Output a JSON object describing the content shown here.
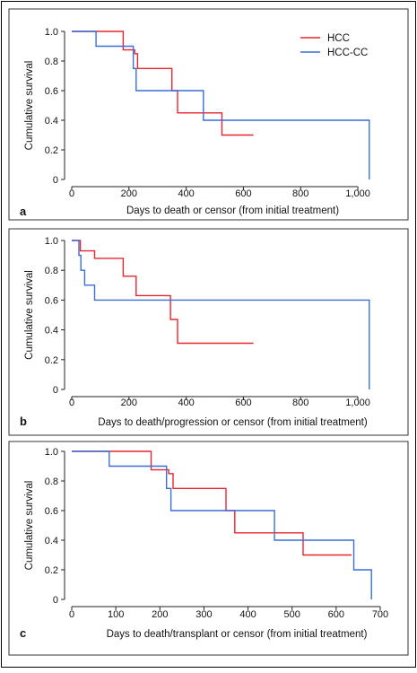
{
  "chart_data": [
    {
      "type": "line",
      "step": true,
      "panel_label": "a",
      "xlabel": "Days to death or censor (from initial treatment)",
      "ylabel": "Cumulative survival",
      "xlim": [
        0,
        1050
      ],
      "ylim": [
        0,
        1.0
      ],
      "x_ticks": [
        0,
        200,
        400,
        600,
        800,
        1000
      ],
      "x_tick_labels": [
        "0",
        "200",
        "400",
        "600",
        "800",
        "1,000"
      ],
      "y_ticks": [
        0,
        0.2,
        0.4,
        0.6,
        0.8,
        1.0
      ],
      "y_tick_labels": [
        "0",
        "0.2",
        "0.4",
        "0.6",
        "0.8",
        "1.0"
      ],
      "legend": {
        "position": "top-right",
        "entries": [
          "HCC",
          "HCC-CC"
        ]
      },
      "series": [
        {
          "name": "HCC",
          "color": "#e8262f",
          "x": [
            0,
            180,
            180,
            220,
            220,
            230,
            230,
            350,
            350,
            370,
            370,
            525,
            525,
            635
          ],
          "y": [
            1.0,
            1.0,
            0.875,
            0.875,
            0.85,
            0.85,
            0.75,
            0.75,
            0.6,
            0.6,
            0.45,
            0.45,
            0.3,
            0.3
          ]
        },
        {
          "name": "HCC-CC",
          "color": "#3a6fd8",
          "x": [
            0,
            85,
            85,
            215,
            215,
            225,
            225,
            460,
            460,
            1040,
            1040
          ],
          "y": [
            1.0,
            1.0,
            0.9,
            0.9,
            0.75,
            0.75,
            0.6,
            0.6,
            0.4,
            0.4,
            0.0
          ]
        }
      ]
    },
    {
      "type": "line",
      "step": true,
      "panel_label": "b",
      "xlabel": "Days to death/progression or censor (from initial treatment)",
      "ylabel": "Cumulative survival",
      "xlim": [
        0,
        1050
      ],
      "ylim": [
        0,
        1.0
      ],
      "x_ticks": [
        0,
        200,
        400,
        600,
        800,
        1000
      ],
      "x_tick_labels": [
        "0",
        "200",
        "400",
        "600",
        "800",
        "1,000"
      ],
      "y_ticks": [
        0,
        0.2,
        0.4,
        0.6,
        0.8,
        1.0
      ],
      "y_tick_labels": [
        "0",
        "0.2",
        "0.4",
        "0.6",
        "0.8",
        "1.0"
      ],
      "series": [
        {
          "name": "HCC",
          "color": "#e8262f",
          "x": [
            0,
            30,
            30,
            80,
            80,
            180,
            180,
            225,
            225,
            345,
            345,
            370,
            370,
            635
          ],
          "y": [
            1.0,
            1.0,
            0.93,
            0.93,
            0.88,
            0.88,
            0.76,
            0.76,
            0.63,
            0.63,
            0.47,
            0.47,
            0.31,
            0.31
          ]
        },
        {
          "name": "HCC-CC",
          "color": "#3a6fd8",
          "x": [
            0,
            25,
            25,
            32,
            32,
            45,
            45,
            80,
            80,
            1040,
            1040
          ],
          "y": [
            1.0,
            1.0,
            0.9,
            0.9,
            0.8,
            0.8,
            0.7,
            0.7,
            0.6,
            0.6,
            0.0
          ]
        }
      ]
    },
    {
      "type": "line",
      "step": true,
      "panel_label": "c",
      "xlabel": "Days to death/transplant or censor (from initial treatment)",
      "ylabel": "Cumulative survival",
      "xlim": [
        0,
        700
      ],
      "ylim": [
        0,
        1.0
      ],
      "x_ticks": [
        0,
        100,
        200,
        300,
        400,
        500,
        600,
        700
      ],
      "x_tick_labels": [
        "0",
        "100",
        "200",
        "300",
        "400",
        "500",
        "600",
        "700"
      ],
      "y_ticks": [
        0,
        0.2,
        0.4,
        0.6,
        0.8,
        1.0
      ],
      "y_tick_labels": [
        "0",
        "0.2",
        "0.4",
        "0.6",
        "0.8",
        "1.0"
      ],
      "series": [
        {
          "name": "HCC",
          "color": "#e8262f",
          "x": [
            0,
            180,
            180,
            220,
            220,
            230,
            230,
            350,
            350,
            370,
            370,
            525,
            525,
            635
          ],
          "y": [
            1.0,
            1.0,
            0.875,
            0.875,
            0.85,
            0.85,
            0.75,
            0.75,
            0.6,
            0.6,
            0.45,
            0.45,
            0.3,
            0.3
          ]
        },
        {
          "name": "HCC-CC",
          "color": "#3a6fd8",
          "x": [
            0,
            85,
            85,
            215,
            215,
            225,
            225,
            460,
            460,
            640,
            640,
            680,
            680
          ],
          "y": [
            1.0,
            1.0,
            0.9,
            0.9,
            0.75,
            0.75,
            0.6,
            0.6,
            0.4,
            0.4,
            0.2,
            0.2,
            0.0
          ]
        }
      ]
    }
  ]
}
